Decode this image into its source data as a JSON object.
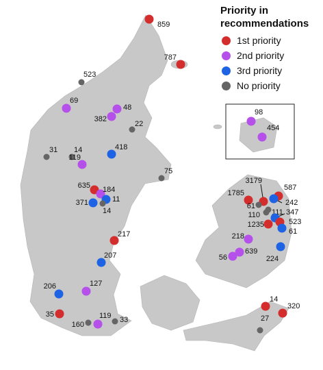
{
  "legend": {
    "title": "Priority in recommendations",
    "items": [
      {
        "label": "1st priority",
        "color": "#d42d2d"
      },
      {
        "label": "2nd priority",
        "color": "#b550ea"
      },
      {
        "label": "3rd priority",
        "color": "#1e63e3"
      },
      {
        "label": "No priority",
        "color": "#656565"
      }
    ]
  },
  "points": [
    {
      "label": "859",
      "priority": 0
    },
    {
      "label": "787",
      "priority": 0
    },
    {
      "label": "523",
      "priority": 3
    },
    {
      "label": "69",
      "priority": 1
    },
    {
      "label": "48",
      "priority": 1
    },
    {
      "label": "382",
      "priority": 1
    },
    {
      "label": "22",
      "priority": 3
    },
    {
      "label": "98",
      "priority": 1
    },
    {
      "label": "454",
      "priority": 1
    },
    {
      "label": "31",
      "priority": 3
    },
    {
      "label": "14",
      "priority": 3
    },
    {
      "label": "418",
      "priority": 2
    },
    {
      "label": "119",
      "priority": 1
    },
    {
      "label": "75",
      "priority": 3
    },
    {
      "label": "635",
      "priority": 0
    },
    {
      "label": "184",
      "priority": 1
    },
    {
      "label": "371",
      "priority": 2
    },
    {
      "label": "11",
      "priority": 2
    },
    {
      "label": "14",
      "priority": 3
    },
    {
      "label": "217",
      "priority": 0
    },
    {
      "label": "207",
      "priority": 2
    },
    {
      "label": "206",
      "priority": 2
    },
    {
      "label": "127",
      "priority": 1
    },
    {
      "label": "35",
      "priority": 0
    },
    {
      "label": "119",
      "priority": 1
    },
    {
      "label": "160",
      "priority": 3
    },
    {
      "label": "33",
      "priority": 3
    },
    {
      "label": "3179",
      "priority": 0
    },
    {
      "label": "587",
      "priority": 0
    },
    {
      "label": "1785",
      "priority": 0
    },
    {
      "label": "242",
      "priority": 2
    },
    {
      "label": "61",
      "priority": 3
    },
    {
      "label": "110",
      "priority": 3
    },
    {
      "label": "111",
      "priority": 3
    },
    {
      "label": "347",
      "priority": 2
    },
    {
      "label": "523",
      "priority": 0
    },
    {
      "label": "1235",
      "priority": 0
    },
    {
      "label": "61",
      "priority": 2
    },
    {
      "label": "218",
      "priority": 1
    },
    {
      "label": "639",
      "priority": 1
    },
    {
      "label": "56",
      "priority": 1
    },
    {
      "label": "224",
      "priority": 2
    },
    {
      "label": "14",
      "priority": 0
    },
    {
      "label": "320",
      "priority": 0
    },
    {
      "label": "27",
      "priority": 3
    }
  ]
}
